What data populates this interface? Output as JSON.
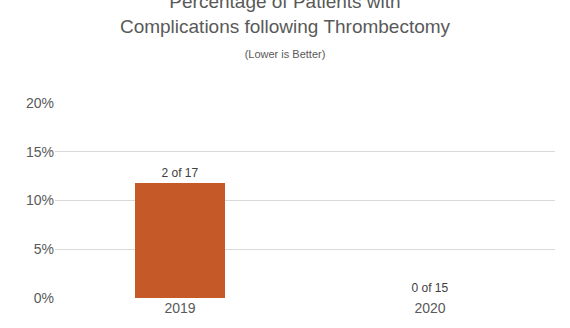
{
  "chart_data": {
    "type": "bar",
    "title": "Percentage of Patients with\nComplications following Thrombectomy",
    "subtitle": "(Lower is Better)",
    "categories": [
      "2019",
      "2020"
    ],
    "values": [
      11.8,
      0
    ],
    "annotations": [
      "2 of 17",
      "0 of 15"
    ],
    "color": "#c55a28",
    "ylim": [
      0,
      20
    ],
    "yticks": [
      {
        "value": 0,
        "label": "0%"
      },
      {
        "value": 5,
        "label": "5%"
      },
      {
        "value": 10,
        "label": "10%"
      },
      {
        "value": 15,
        "label": "15%"
      },
      {
        "value": 20,
        "label": "20%"
      }
    ],
    "grid": true
  }
}
